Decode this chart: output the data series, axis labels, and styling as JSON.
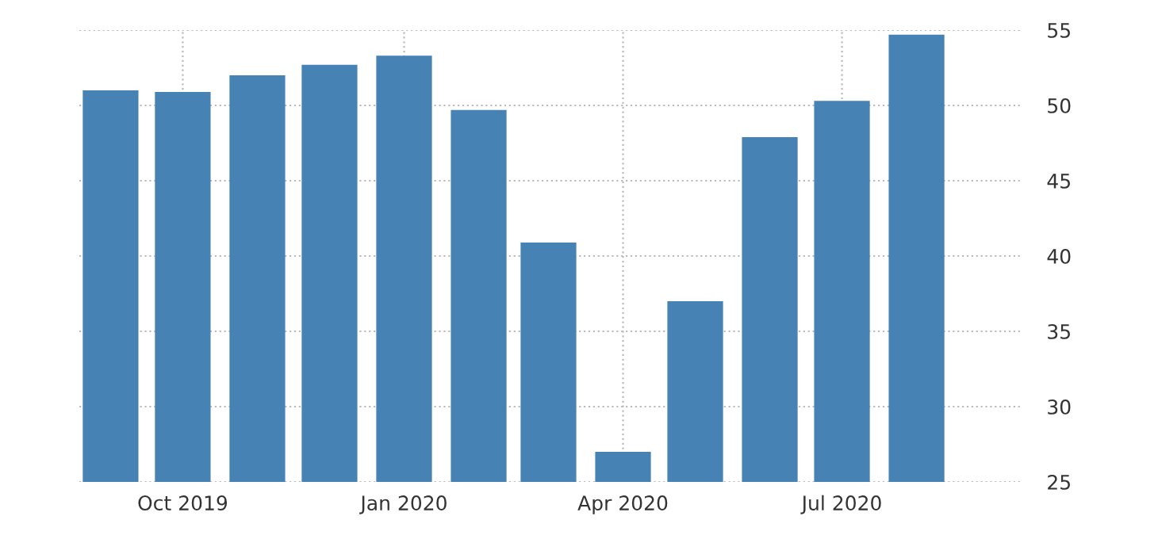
{
  "chart_data": {
    "type": "bar",
    "x": [
      "2019-09-01",
      "2019-10-01",
      "2019-11-01",
      "2019-12-01",
      "2020-01-01",
      "2020-02-01",
      "2020-03-01",
      "2020-04-01",
      "2020-05-01",
      "2020-06-01",
      "2020-07-01",
      "2020-08-01"
    ],
    "values": [
      51.0,
      50.9,
      52.0,
      52.7,
      53.3,
      49.7,
      40.9,
      27.0,
      37.0,
      47.9,
      50.3,
      54.7
    ],
    "color": "#4682b4",
    "xlim": [
      "2019-08-19",
      "2020-09-13"
    ],
    "xticks": [
      {
        "value": "2019-10-01",
        "label": "Oct 2019"
      },
      {
        "value": "2020-01-01",
        "label": "Jan 2020"
      },
      {
        "value": "2020-04-01",
        "label": "Apr 2020"
      },
      {
        "value": "2020-07-01",
        "label": "Jul 2020"
      }
    ],
    "ylim": [
      25,
      55
    ],
    "yticks": [
      25,
      30,
      35,
      40,
      45,
      50,
      55
    ],
    "grid": true
  }
}
